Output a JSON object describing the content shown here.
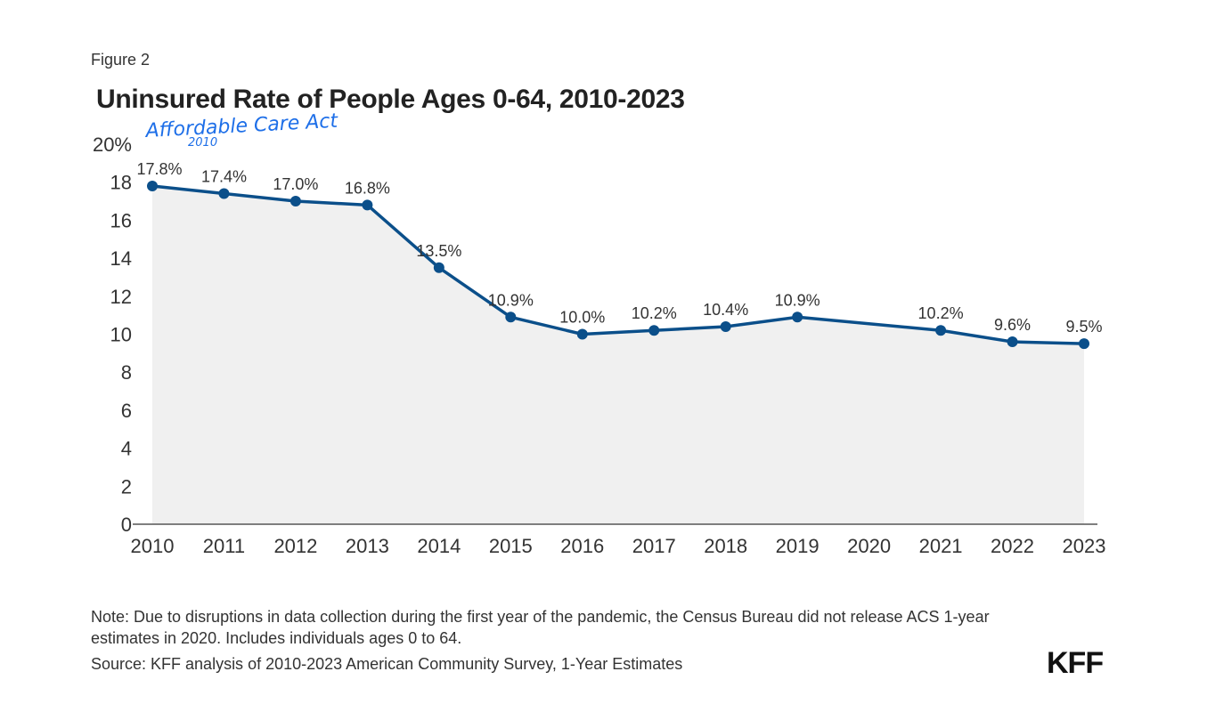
{
  "figure_label": "Figure 2",
  "title": "Uninsured Rate of People Ages 0-64, 2010-2023",
  "annotation": {
    "text": "Affordable Care Act",
    "subtext": "2010"
  },
  "note": "Note: Due to disruptions in data collection during the first year of the pandemic, the Census Bureau did not release ACS 1-year estimates in 2020. Includes individuals ages 0 to 64.",
  "source": "Source: KFF analysis of 2010-2023 American Community Survey, 1-Year Estimates",
  "logo": "KFF",
  "colors": {
    "line": "#0b4f8a",
    "area": "#f0f0f0",
    "axis": "#555555",
    "annotation": "#1e6fe8"
  },
  "chart_data": {
    "type": "area",
    "title": "Uninsured Rate of People Ages 0-64, 2010-2023",
    "xlabel": "",
    "ylabel": "",
    "x": [
      2010,
      2011,
      2012,
      2013,
      2014,
      2015,
      2016,
      2017,
      2018,
      2019,
      2021,
      2022,
      2023
    ],
    "x_ticks": [
      "2010",
      "2011",
      "2012",
      "2013",
      "2014",
      "2015",
      "2016",
      "2017",
      "2018",
      "2019",
      "2020",
      "2021",
      "2022",
      "2023"
    ],
    "y_ticks": [
      "0",
      "2",
      "4",
      "6",
      "8",
      "10",
      "12",
      "14",
      "16",
      "18",
      "20%"
    ],
    "xlim": [
      2010,
      2023
    ],
    "ylim": [
      0,
      20
    ],
    "grid": false,
    "series": [
      {
        "values": [
          17.8,
          17.4,
          17.0,
          16.8,
          13.5,
          10.9,
          10.0,
          10.2,
          10.4,
          10.9,
          10.2,
          9.6,
          9.5
        ],
        "labels": [
          "17.8%",
          "17.4%",
          "17.0%",
          "16.8%",
          "13.5%",
          "10.9%",
          "10.0%",
          "10.2%",
          "10.4%",
          "10.9%",
          "10.2%",
          "9.6%",
          "9.5%"
        ]
      }
    ]
  }
}
